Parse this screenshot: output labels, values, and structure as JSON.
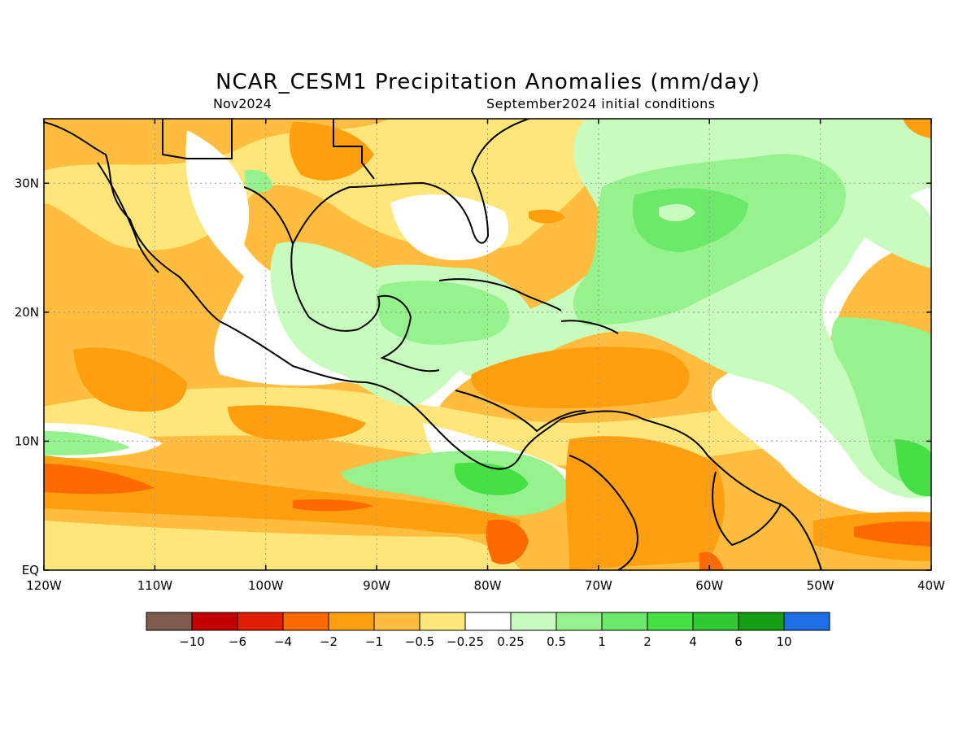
{
  "title": "NCAR_CESM1 Precipitation Anomalies (mm/day)",
  "subtitle_left": "Nov2024",
  "subtitle_right": "September2024 initial conditions",
  "map": {
    "lon_range": [
      -120,
      -40
    ],
    "lat_range": [
      0,
      35
    ],
    "lon_ticks": [
      {
        "value": -120,
        "label": "120W"
      },
      {
        "value": -110,
        "label": "110W"
      },
      {
        "value": -100,
        "label": "100W"
      },
      {
        "value": -90,
        "label": "90W"
      },
      {
        "value": -80,
        "label": "80W"
      },
      {
        "value": -70,
        "label": "70W"
      },
      {
        "value": -60,
        "label": "60W"
      },
      {
        "value": -50,
        "label": "50W"
      },
      {
        "value": -40,
        "label": "40W"
      }
    ],
    "lat_ticks": [
      {
        "value": 0,
        "label": "EQ"
      },
      {
        "value": 10,
        "label": "10N"
      },
      {
        "value": 20,
        "label": "20N"
      },
      {
        "value": 30,
        "label": "30N"
      }
    ],
    "grid": true
  },
  "colorbar": {
    "colors": [
      "#7f5a4e",
      "#c30000",
      "#e01e00",
      "#ff6a00",
      "#ff9f10",
      "#ffbd40",
      "#ffe67a",
      "#ffffff",
      "#c8fcbe",
      "#96f28c",
      "#6ce86a",
      "#46e046",
      "#32c832",
      "#14a014",
      "#1e6ee6"
    ],
    "labels": [
      "−10",
      "−6",
      "−4",
      "−2",
      "−1",
      "−0.5",
      "−0.25",
      "0.25",
      "0.5",
      "1",
      "2",
      "4",
      "6",
      "10"
    ]
  }
}
